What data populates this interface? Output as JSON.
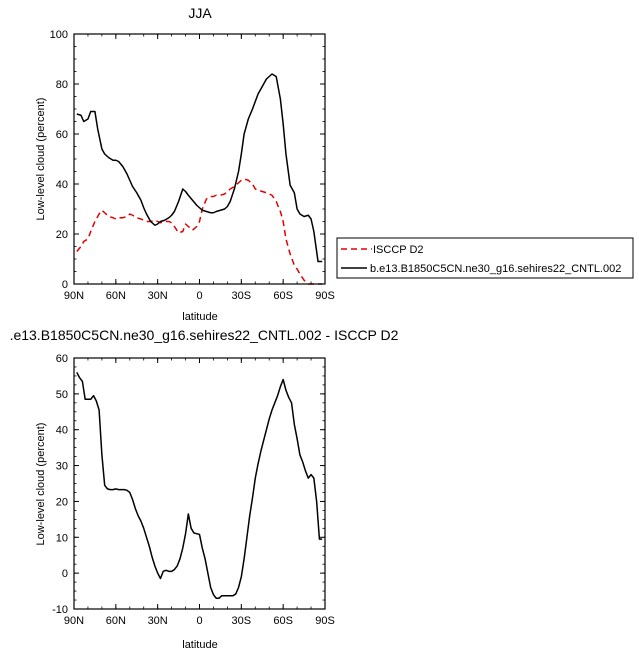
{
  "chart_data": [
    {
      "type": "line",
      "title": "JJA",
      "xlabel": "latitude",
      "ylabel": "Low-level cloud (percent)",
      "xlim": [
        90,
        -90
      ],
      "ylim": [
        0,
        100
      ],
      "x_ticks": [
        90,
        60,
        30,
        0,
        -30,
        -60,
        -90
      ],
      "x_tick_labels": [
        "90N",
        "60N",
        "30N",
        "0",
        "30S",
        "60S",
        "90S"
      ],
      "y_ticks": [
        0,
        20,
        40,
        60,
        80,
        100
      ],
      "y_tick_labels": [
        "0",
        "20",
        "40",
        "60",
        "80",
        "100"
      ],
      "legend_position": "right",
      "series": [
        {
          "name": "ISCCP D2",
          "color": "#e00000",
          "dash": "dashed",
          "x": [
            88,
            85,
            83,
            80,
            78,
            75,
            72,
            70,
            68,
            65,
            62,
            60,
            58,
            55,
            52,
            50,
            48,
            45,
            42,
            40,
            38,
            35,
            32,
            30,
            28,
            25,
            22,
            20,
            18,
            15,
            12,
            10,
            8,
            5,
            2,
            0,
            -2,
            -5,
            -8,
            -10,
            -12,
            -15,
            -18,
            -20,
            -22,
            -25,
            -28,
            -30,
            -32,
            -35,
            -38,
            -40,
            -42,
            -45,
            -48,
            -50,
            -52,
            -55,
            -58,
            -60,
            -62,
            -65,
            -68,
            -70,
            -72,
            -75,
            -78,
            -80,
            -82,
            -85,
            -88
          ],
          "y": [
            13,
            15,
            17,
            18,
            21,
            25,
            28,
            29.5,
            28.5,
            27,
            26.5,
            26,
            26.5,
            26.5,
            27,
            28,
            27.5,
            26.5,
            26,
            25.5,
            25,
            25,
            25.5,
            25,
            24.5,
            25,
            25,
            24.5,
            23,
            20.5,
            21,
            24,
            23,
            21.5,
            23,
            25,
            30,
            34,
            35,
            35,
            35.5,
            35.5,
            36,
            37,
            38,
            39,
            40.5,
            41.5,
            42,
            41.5,
            40,
            38,
            37.5,
            37,
            36.5,
            36,
            35.5,
            33,
            29,
            25,
            18,
            12,
            7.5,
            6,
            4,
            1.5,
            0,
            0,
            0,
            0,
            0
          ]
        },
        {
          "name": "b.e13.B1850C5CN.ne30_g16.sehires22_CNTL.002",
          "color": "#000000",
          "dash": "solid",
          "x": [
            88,
            85,
            83,
            80,
            78,
            75,
            73,
            70,
            68,
            65,
            62,
            60,
            58,
            55,
            52,
            50,
            48,
            45,
            42,
            40,
            38,
            35,
            32,
            30,
            28,
            25,
            22,
            20,
            18,
            15,
            12,
            10,
            8,
            5,
            2,
            0,
            -2,
            -5,
            -8,
            -10,
            -12,
            -15,
            -18,
            -20,
            -22,
            -25,
            -28,
            -30,
            -32,
            -35,
            -38,
            -40,
            -42,
            -45,
            -48,
            -50,
            -52,
            -55,
            -58,
            -60,
            -62,
            -65,
            -68,
            -70,
            -72,
            -75,
            -78,
            -80,
            -82,
            -85,
            -88
          ],
          "y": [
            68,
            67.5,
            65,
            66,
            69,
            69,
            62,
            54,
            52,
            50.5,
            49.5,
            49.5,
            49,
            47,
            44,
            41.5,
            39,
            36.5,
            33.5,
            30.5,
            28,
            25,
            23.5,
            24,
            25,
            25.5,
            26.5,
            27.5,
            29,
            33,
            38,
            37,
            35.5,
            33.5,
            31.5,
            30.5,
            29.5,
            29,
            28.5,
            28.5,
            29,
            29.5,
            30,
            31,
            33,
            38,
            45,
            52,
            60,
            66,
            70,
            73,
            76,
            79,
            82,
            83,
            84,
            83,
            74,
            64,
            52,
            39.5,
            36.5,
            30,
            28,
            27,
            27.5,
            26,
            21,
            9,
            9
          ]
        }
      ]
    },
    {
      "type": "line",
      "title": ".e13.B1850C5CN.ne30_g16.sehires22_CNTL.002 - ISCCP D2",
      "xlabel": "latitude",
      "ylabel": "Low-level cloud (percent)",
      "xlim": [
        90,
        -90
      ],
      "ylim": [
        -10,
        60
      ],
      "x_ticks": [
        90,
        60,
        30,
        0,
        -30,
        -60,
        -90
      ],
      "x_tick_labels": [
        "90N",
        "60N",
        "30N",
        "0",
        "30S",
        "60S",
        "90S"
      ],
      "y_ticks": [
        -10,
        0,
        10,
        20,
        30,
        40,
        50,
        60
      ],
      "y_tick_labels": [
        "-10",
        "0",
        "10",
        "20",
        "30",
        "40",
        "50",
        "60"
      ],
      "series": [
        {
          "color": "#000000",
          "dash": "solid",
          "x": [
            88,
            86,
            84,
            82,
            80,
            78,
            76,
            74,
            72,
            70,
            68,
            66,
            64,
            62,
            60,
            58,
            56,
            54,
            52,
            50,
            48,
            46,
            44,
            42,
            40,
            38,
            36,
            34,
            32,
            30,
            28,
            26,
            24,
            22,
            20,
            18,
            16,
            14,
            12,
            10,
            8,
            6,
            4,
            2,
            0,
            -2,
            -4,
            -6,
            -8,
            -10,
            -12,
            -14,
            -16,
            -18,
            -20,
            -22,
            -24,
            -26,
            -28,
            -30,
            -32,
            -34,
            -36,
            -38,
            -40,
            -42,
            -44,
            -46,
            -48,
            -50,
            -52,
            -54,
            -56,
            -58,
            -60,
            -62,
            -64,
            -66,
            -68,
            -70,
            -72,
            -74,
            -76,
            -78,
            -80,
            -82,
            -84,
            -86,
            -88
          ],
          "y": [
            56,
            54.5,
            53.5,
            48.5,
            48.5,
            48.5,
            49.5,
            48,
            45.5,
            33,
            24.5,
            23.5,
            23.3,
            23.3,
            23.5,
            23.3,
            23.3,
            23.3,
            23.1,
            22.5,
            20.5,
            18,
            16,
            14.5,
            12.5,
            10,
            7.5,
            4.5,
            2,
            0,
            -1.5,
            0.5,
            0.8,
            0.5,
            0.5,
            1,
            2,
            4,
            7,
            11,
            16.5,
            12.5,
            11.2,
            11,
            10.8,
            7,
            4,
            0,
            -4,
            -6,
            -7,
            -7,
            -6.3,
            -6.3,
            -6.3,
            -6.3,
            -6.3,
            -5.8,
            -4,
            -1,
            4,
            10,
            16,
            21,
            26.5,
            30.5,
            34,
            37,
            40,
            43,
            45.5,
            47.5,
            49.5,
            52,
            54,
            51,
            49,
            47.5,
            41.5,
            37.5,
            33,
            31,
            28.5,
            26.5,
            27.5,
            26.5,
            20,
            9.5,
            9.5
          ]
        }
      ]
    }
  ]
}
